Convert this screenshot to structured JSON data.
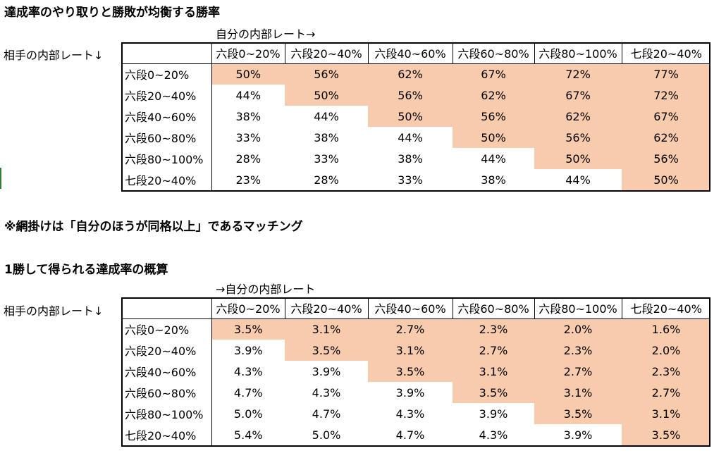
{
  "title1": "達成率のやり取りと勝敗が均衡する勝率",
  "col_caption1": "自分の内部レート→",
  "row_caption1": "相手の内部レート↓",
  "note": "※網掛けは「自分のほうが同格以上」であるマッチング",
  "title2": "1勝して得られる達成率の概算",
  "col_caption2": "→自分の内部レート",
  "row_caption2": "相手の内部レート↓",
  "col_headers": [
    "六段0~20%",
    "六段20~40%",
    "六段40~60%",
    "六段60~80%",
    "六段80~100%",
    "七段20~40%"
  ],
  "row_headers": [
    "六段0~20%",
    "六段20~40%",
    "六段40~60%",
    "六段60~80%",
    "六段80~100%",
    "七段20~40%"
  ],
  "table1": [
    [
      "50%",
      "56%",
      "62%",
      "67%",
      "72%",
      "77%"
    ],
    [
      "44%",
      "50%",
      "56%",
      "62%",
      "67%",
      "72%"
    ],
    [
      "38%",
      "44%",
      "50%",
      "56%",
      "62%",
      "67%"
    ],
    [
      "33%",
      "38%",
      "44%",
      "50%",
      "56%",
      "62%"
    ],
    [
      "28%",
      "33%",
      "38%",
      "44%",
      "50%",
      "56%"
    ],
    [
      "23%",
      "28%",
      "33%",
      "38%",
      "44%",
      "50%"
    ]
  ],
  "table2": [
    [
      "3.5%",
      "3.1%",
      "2.7%",
      "2.3%",
      "2.0%",
      "1.6%"
    ],
    [
      "3.9%",
      "3.5%",
      "3.1%",
      "2.7%",
      "2.3%",
      "2.0%"
    ],
    [
      "4.3%",
      "3.9%",
      "3.5%",
      "3.1%",
      "2.7%",
      "2.3%"
    ],
    [
      "4.7%",
      "4.3%",
      "3.9%",
      "3.5%",
      "3.1%",
      "2.7%"
    ],
    [
      "5.0%",
      "4.7%",
      "4.3%",
      "3.9%",
      "3.5%",
      "3.1%"
    ],
    [
      "5.4%",
      "5.0%",
      "4.7%",
      "4.3%",
      "3.9%",
      "3.5%"
    ]
  ],
  "shade_color": "#f8cbad"
}
